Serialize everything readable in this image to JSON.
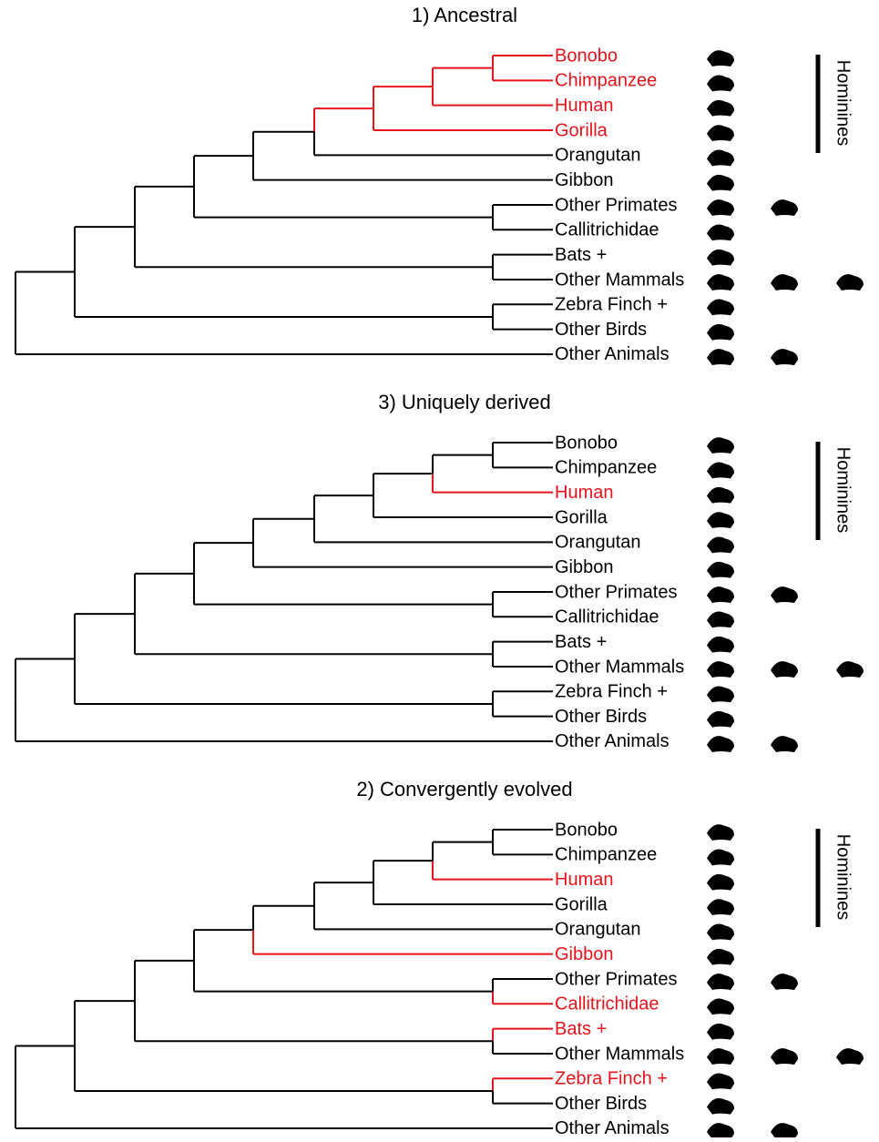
{
  "highlight_color": "#e8141b",
  "panels": [
    {
      "title": "1) Ancestral",
      "group_label": "Hominines",
      "taxa": [
        {
          "label": "Bonobo",
          "highlighted": true
        },
        {
          "label": "Chimpanzee",
          "highlighted": true
        },
        {
          "label": "Human",
          "highlighted": true
        },
        {
          "label": "Gorilla",
          "highlighted": true
        },
        {
          "label": "Orangutan",
          "highlighted": false
        },
        {
          "label": "Gibbon",
          "highlighted": false
        },
        {
          "label": "Other Primates",
          "highlighted": false
        },
        {
          "label": "Callitrichidae",
          "highlighted": false
        },
        {
          "label": "Bats +",
          "highlighted": false
        },
        {
          "label": "Other Mammals",
          "highlighted": false
        },
        {
          "label": "Zebra Finch +",
          "highlighted": false
        },
        {
          "label": "Other Birds",
          "highlighted": false
        },
        {
          "label": "Other Animals",
          "highlighted": false
        }
      ]
    },
    {
      "title": "3) Uniquely derived",
      "group_label": "Hominines",
      "taxa": [
        {
          "label": "Bonobo",
          "highlighted": false
        },
        {
          "label": "Chimpanzee",
          "highlighted": false
        },
        {
          "label": "Human",
          "highlighted": true
        },
        {
          "label": "Gorilla",
          "highlighted": false
        },
        {
          "label": "Orangutan",
          "highlighted": false
        },
        {
          "label": "Gibbon",
          "highlighted": false
        },
        {
          "label": "Other Primates",
          "highlighted": false
        },
        {
          "label": "Callitrichidae",
          "highlighted": false
        },
        {
          "label": "Bats +",
          "highlighted": false
        },
        {
          "label": "Other Mammals",
          "highlighted": false
        },
        {
          "label": "Zebra Finch +",
          "highlighted": false
        },
        {
          "label": "Other Birds",
          "highlighted": false
        },
        {
          "label": "Other Animals",
          "highlighted": false
        }
      ]
    },
    {
      "title": "2) Convergently evolved",
      "group_label": "Hominines",
      "taxa": [
        {
          "label": "Bonobo",
          "highlighted": false
        },
        {
          "label": "Chimpanzee",
          "highlighted": false
        },
        {
          "label": "Human",
          "highlighted": true
        },
        {
          "label": "Gorilla",
          "highlighted": false
        },
        {
          "label": "Orangutan",
          "highlighted": false
        },
        {
          "label": "Gibbon",
          "highlighted": true
        },
        {
          "label": "Other Primates",
          "highlighted": false
        },
        {
          "label": "Callitrichidae",
          "highlighted": true
        },
        {
          "label": "Bats +",
          "highlighted": true
        },
        {
          "label": "Other Mammals",
          "highlighted": false
        },
        {
          "label": "Zebra Finch +",
          "highlighted": true
        },
        {
          "label": "Other Birds",
          "highlighted": false
        },
        {
          "label": "Other Animals",
          "highlighted": false
        }
      ]
    }
  ]
}
